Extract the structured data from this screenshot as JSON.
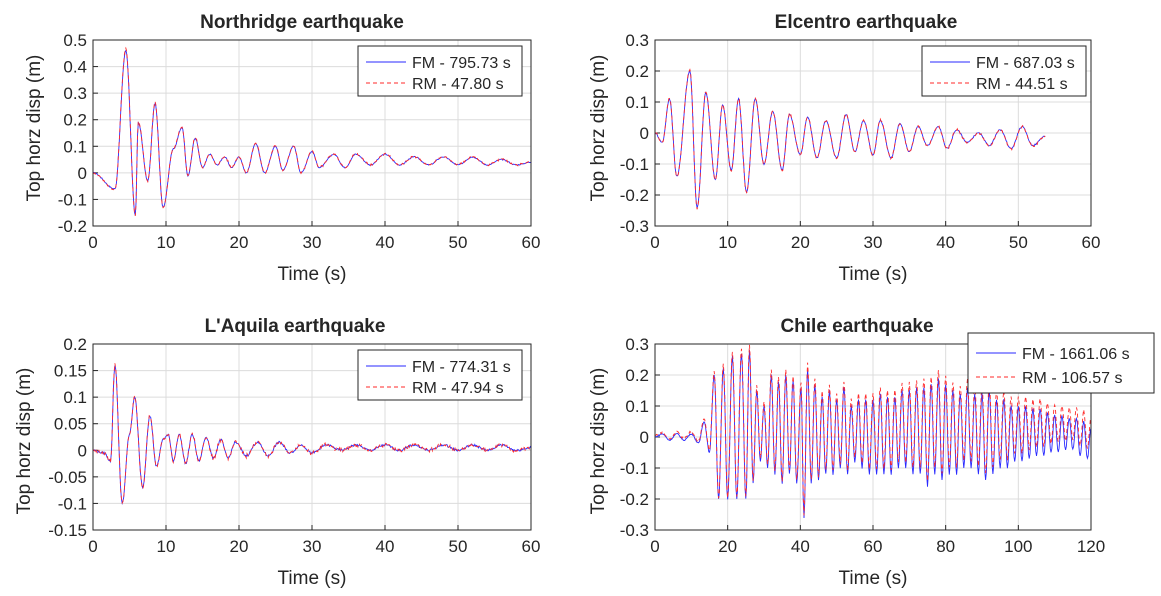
{
  "colors": {
    "FM": "#2a2aff",
    "RM": "#ff2a2a",
    "grid": "#dcdcdc",
    "axis": "#262626",
    "background": "#ffffff"
  },
  "chart_data": [
    {
      "type": "line",
      "title": "Northridge earthquake",
      "xlabel": "Time (s)",
      "ylabel": "Top horz disp (m)",
      "xlim": [
        0,
        60
      ],
      "ylim": [
        -0.2,
        0.5
      ],
      "xticks": [
        "0",
        "10",
        "20",
        "30",
        "40",
        "50",
        "60"
      ],
      "yticks": [
        "-0.2",
        "-0.1",
        "0",
        "0.1",
        "0.2",
        "0.3",
        "0.4",
        "0.5"
      ],
      "grid": true,
      "legend_position": "top-right",
      "series": [
        {
          "name": "FM - 795.73 s",
          "style": "solid",
          "color": "#2a2aff"
        },
        {
          "name": "RM - 47.80 s",
          "style": "dashed",
          "color": "#ff2a2a"
        }
      ],
      "signal": {
        "x_end": 60,
        "baseline": 0.04,
        "pre": 0.0,
        "peaks": [
          [
            3.0,
            -0.06
          ],
          [
            4.5,
            0.46
          ],
          [
            5.8,
            -0.16
          ],
          [
            6.2,
            0.19
          ],
          [
            7.5,
            -0.03
          ],
          [
            8.5,
            0.26
          ],
          [
            9.6,
            -0.13
          ],
          [
            11.0,
            0.09
          ],
          [
            12.2,
            0.17
          ],
          [
            13.0,
            -0.01
          ],
          [
            14.0,
            0.13
          ],
          [
            15.0,
            0.02
          ],
          [
            16.0,
            0.07
          ],
          [
            17.0,
            0.03
          ],
          [
            18.0,
            0.06
          ],
          [
            19.0,
            0.02
          ],
          [
            20.0,
            0.06
          ],
          [
            21.0,
            0.0
          ],
          [
            22.3,
            0.11
          ],
          [
            23.5,
            0.0
          ],
          [
            25.0,
            0.1
          ],
          [
            26.0,
            0.01
          ],
          [
            27.5,
            0.1
          ],
          [
            28.5,
            0.0
          ],
          [
            30.0,
            0.08
          ],
          [
            31.0,
            0.02
          ],
          [
            33.0,
            0.07
          ],
          [
            34.5,
            0.02
          ],
          [
            36.0,
            0.07
          ],
          [
            38.0,
            0.03
          ],
          [
            40.0,
            0.07
          ],
          [
            42.0,
            0.03
          ],
          [
            44.0,
            0.06
          ],
          [
            46.0,
            0.03
          ],
          [
            48.0,
            0.06
          ],
          [
            50.0,
            0.03
          ],
          [
            52.0,
            0.06
          ],
          [
            54.0,
            0.03
          ],
          [
            56.0,
            0.05
          ],
          [
            58.0,
            0.03
          ],
          [
            60.0,
            0.04
          ]
        ]
      }
    },
    {
      "type": "line",
      "title": "Elcentro earthquake",
      "xlabel": "Time (s)",
      "ylabel": "Top horz disp (m)",
      "xlim": [
        0,
        60
      ],
      "ylim": [
        -0.3,
        0.3
      ],
      "xticks": [
        "0",
        "10",
        "20",
        "30",
        "40",
        "50",
        "60"
      ],
      "yticks": [
        "-0.3",
        "-0.2",
        "-0.1",
        "0",
        "0.1",
        "0.2",
        "0.3"
      ],
      "grid": true,
      "legend_position": "top-right",
      "series": [
        {
          "name": "FM - 687.03 s",
          "style": "solid",
          "color": "#2a2aff"
        },
        {
          "name": "RM - 44.51 s",
          "style": "dashed",
          "color": "#ff2a2a"
        }
      ],
      "signal": {
        "x_end": 53.7,
        "baseline": 0.0,
        "pre": 0.0,
        "peaks": [
          [
            1.0,
            -0.03
          ],
          [
            2.0,
            0.11
          ],
          [
            3.0,
            -0.14
          ],
          [
            4.8,
            0.2
          ],
          [
            5.8,
            -0.24
          ],
          [
            7.0,
            0.13
          ],
          [
            8.3,
            -0.15
          ],
          [
            9.3,
            0.09
          ],
          [
            10.5,
            -0.12
          ],
          [
            11.5,
            0.11
          ],
          [
            12.6,
            -0.19
          ],
          [
            13.8,
            0.11
          ],
          [
            15.0,
            -0.1
          ],
          [
            16.2,
            0.07
          ],
          [
            17.5,
            -0.12
          ],
          [
            18.5,
            0.06
          ],
          [
            20.0,
            -0.07
          ],
          [
            21.0,
            0.05
          ],
          [
            22.3,
            -0.08
          ],
          [
            23.5,
            0.04
          ],
          [
            25.0,
            -0.08
          ],
          [
            26.3,
            0.06
          ],
          [
            27.5,
            -0.06
          ],
          [
            28.7,
            0.04
          ],
          [
            30.0,
            -0.07
          ],
          [
            31.0,
            0.04
          ],
          [
            32.5,
            -0.08
          ],
          [
            33.7,
            0.03
          ],
          [
            35.0,
            -0.06
          ],
          [
            36.2,
            0.02
          ],
          [
            37.5,
            -0.04
          ],
          [
            39.0,
            0.02
          ],
          [
            40.2,
            -0.05
          ],
          [
            41.5,
            0.01
          ],
          [
            43.0,
            -0.03
          ],
          [
            44.5,
            0.0
          ],
          [
            46.0,
            -0.04
          ],
          [
            47.5,
            0.01
          ],
          [
            49.0,
            -0.05
          ],
          [
            50.5,
            0.02
          ],
          [
            52.0,
            -0.04
          ],
          [
            53.7,
            -0.01
          ]
        ]
      }
    },
    {
      "type": "line",
      "title": "L'Aquila earthquake",
      "xlabel": "Time (s)",
      "ylabel": "Top horz disp (m)",
      "xlim": [
        0,
        60
      ],
      "ylim": [
        -0.15,
        0.2
      ],
      "xticks": [
        "0",
        "10",
        "20",
        "30",
        "40",
        "50",
        "60"
      ],
      "yticks": [
        "-0.15",
        "-0.1",
        "-0.05",
        "0",
        "0.05",
        "0.1",
        "0.15",
        "0.2"
      ],
      "grid": true,
      "legend_position": "top-right",
      "series": [
        {
          "name": "FM - 774.31 s",
          "style": "solid",
          "color": "#2a2aff"
        },
        {
          "name": "RM - 47.94 s",
          "style": "dashed",
          "color": "#ff2a2a"
        }
      ],
      "signal": {
        "x_end": 60,
        "baseline": 0.005,
        "pre": 0.0,
        "peaks": [
          [
            1.5,
            -0.005
          ],
          [
            2.4,
            -0.02
          ],
          [
            3.0,
            0.16
          ],
          [
            4.0,
            -0.1
          ],
          [
            5.0,
            0.03
          ],
          [
            5.7,
            0.1
          ],
          [
            6.8,
            -0.07
          ],
          [
            7.8,
            0.065
          ],
          [
            8.7,
            -0.03
          ],
          [
            9.6,
            0.02
          ],
          [
            10.3,
            0.03
          ],
          [
            11.0,
            -0.02
          ],
          [
            11.8,
            0.03
          ],
          [
            12.7,
            -0.025
          ],
          [
            13.6,
            0.03
          ],
          [
            14.5,
            -0.02
          ],
          [
            15.5,
            0.025
          ],
          [
            16.5,
            -0.015
          ],
          [
            17.5,
            0.02
          ],
          [
            18.5,
            -0.015
          ],
          [
            19.5,
            0.015
          ],
          [
            21.0,
            -0.01
          ],
          [
            22.5,
            0.015
          ],
          [
            24.0,
            -0.01
          ],
          [
            25.5,
            0.015
          ],
          [
            27.0,
            -0.005
          ],
          [
            28.5,
            0.01
          ],
          [
            30.0,
            -0.005
          ],
          [
            32.0,
            0.01
          ],
          [
            34.0,
            0.0
          ],
          [
            36.0,
            0.01
          ],
          [
            38.0,
            0.0
          ],
          [
            40.0,
            0.01
          ],
          [
            42.0,
            0.0
          ],
          [
            44.0,
            0.01
          ],
          [
            46.0,
            0.0
          ],
          [
            48.0,
            0.01
          ],
          [
            50.0,
            0.0
          ],
          [
            52.0,
            0.01
          ],
          [
            54.0,
            0.0
          ],
          [
            56.0,
            0.01
          ],
          [
            58.0,
            0.0
          ],
          [
            60.0,
            0.005
          ]
        ]
      }
    },
    {
      "type": "line",
      "title": "Chile earthquake",
      "xlabel": "Time (s)",
      "ylabel": "Top horz disp (m)",
      "xlim": [
        0,
        120
      ],
      "ylim": [
        -0.3,
        0.3
      ],
      "xticks": [
        "0",
        "20",
        "40",
        "60",
        "80",
        "100",
        "120"
      ],
      "yticks": [
        "-0.3",
        "-0.2",
        "-0.1",
        "0",
        "0.1",
        "0.2",
        "0.3"
      ],
      "grid": true,
      "legend_position": "top-right",
      "series": [
        {
          "name": "FM - 1661.06 s",
          "style": "solid",
          "color": "#2a2aff"
        },
        {
          "name": "RM - 106.57 s",
          "style": "dashed",
          "color": "#ff2a2a"
        }
      ],
      "signal": {
        "x_end": 120,
        "baseline": 0.0,
        "pre": 0.0,
        "peaks": [
          [
            2,
            0.01
          ],
          [
            4,
            -0.01
          ],
          [
            6,
            0.01
          ],
          [
            8,
            -0.01
          ],
          [
            10,
            0.01
          ],
          [
            12,
            -0.02
          ],
          [
            13.5,
            0.05
          ],
          [
            15,
            -0.05
          ],
          [
            16.3,
            0.2
          ],
          [
            17.5,
            -0.2
          ],
          [
            18.8,
            0.22
          ],
          [
            20,
            -0.2
          ],
          [
            21.3,
            0.26
          ],
          [
            22.5,
            -0.2
          ],
          [
            23.8,
            0.27
          ],
          [
            25,
            -0.2
          ],
          [
            26,
            0.28
          ],
          [
            27,
            -0.15
          ],
          [
            28,
            0.15
          ],
          [
            29,
            -0.08
          ],
          [
            30,
            0.1
          ],
          [
            31,
            -0.1
          ],
          [
            32,
            0.2
          ],
          [
            33,
            -0.12
          ],
          [
            34,
            0.18
          ],
          [
            35,
            -0.15
          ],
          [
            36,
            0.2
          ],
          [
            37,
            -0.12
          ],
          [
            38,
            0.18
          ],
          [
            39,
            -0.15
          ],
          [
            40.2,
            0.16
          ],
          [
            41,
            -0.26
          ],
          [
            42,
            0.22
          ],
          [
            43,
            -0.15
          ],
          [
            44,
            0.17
          ],
          [
            45,
            -0.14
          ],
          [
            46,
            0.13
          ],
          [
            47,
            -0.12
          ],
          [
            48,
            0.15
          ],
          [
            49,
            -0.12
          ],
          [
            50,
            0.12
          ],
          [
            51,
            -0.1
          ],
          [
            52,
            0.16
          ],
          [
            53,
            -0.12
          ],
          [
            54,
            0.1
          ],
          [
            55,
            -0.08
          ],
          [
            56,
            0.12
          ],
          [
            57,
            -0.1
          ],
          [
            58,
            0.12
          ],
          [
            59,
            -0.12
          ],
          [
            60,
            0.12
          ],
          [
            61,
            -0.12
          ],
          [
            62,
            0.14
          ],
          [
            63,
            -0.12
          ],
          [
            64,
            0.13
          ],
          [
            65,
            -0.12
          ],
          [
            66,
            0.13
          ],
          [
            67,
            -0.1
          ],
          [
            68,
            0.15
          ],
          [
            69,
            -0.1
          ],
          [
            70,
            0.15
          ],
          [
            71,
            -0.12
          ],
          [
            72,
            0.16
          ],
          [
            73,
            -0.12
          ],
          [
            74,
            0.16
          ],
          [
            75,
            -0.16
          ],
          [
            76,
            0.17
          ],
          [
            77,
            -0.12
          ],
          [
            78,
            0.19
          ],
          [
            79,
            -0.14
          ],
          [
            80,
            0.17
          ],
          [
            81,
            -0.12
          ],
          [
            82,
            0.15
          ],
          [
            83,
            -0.12
          ],
          [
            84,
            0.14
          ],
          [
            85,
            -0.1
          ],
          [
            86,
            0.16
          ],
          [
            87,
            -0.1
          ],
          [
            88,
            0.14
          ],
          [
            89,
            -0.12
          ],
          [
            90,
            0.14
          ],
          [
            91,
            -0.14
          ],
          [
            92,
            0.15
          ],
          [
            93,
            -0.12
          ],
          [
            94,
            0.12
          ],
          [
            95,
            -0.1
          ],
          [
            96,
            0.12
          ],
          [
            97,
            -0.1
          ],
          [
            98,
            0.1
          ],
          [
            99,
            -0.08
          ],
          [
            100,
            0.1
          ],
          [
            101,
            -0.08
          ],
          [
            102,
            0.1
          ],
          [
            103,
            -0.07
          ],
          [
            104,
            0.09
          ],
          [
            105,
            -0.06
          ],
          [
            106,
            0.09
          ],
          [
            107,
            -0.06
          ],
          [
            108,
            0.08
          ],
          [
            109,
            -0.05
          ],
          [
            110,
            0.07
          ],
          [
            111,
            -0.05
          ],
          [
            112,
            0.07
          ],
          [
            113,
            -0.04
          ],
          [
            114,
            0.06
          ],
          [
            115,
            -0.04
          ],
          [
            116,
            0.06
          ],
          [
            117,
            -0.06
          ],
          [
            118,
            0.05
          ],
          [
            119,
            -0.07
          ],
          [
            120,
            0.03
          ]
        ]
      }
    }
  ]
}
